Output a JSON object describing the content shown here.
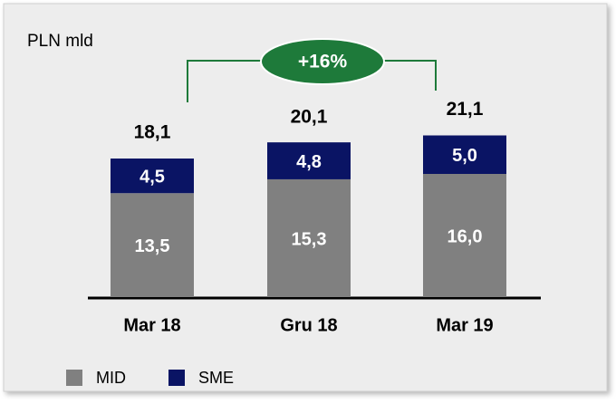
{
  "chart_data": {
    "type": "stacked_bar",
    "unit_label": "PLN mld",
    "annotation": "+16%",
    "categories": [
      "Mar 18",
      "Gru 18",
      "Mar 19"
    ],
    "series": [
      {
        "name": "MID",
        "color": "#808080",
        "values": [
          13.5,
          15.3,
          16.0
        ],
        "value_labels": [
          "13,5",
          "15,3",
          "16,0"
        ]
      },
      {
        "name": "SME",
        "color": "#0a1464",
        "values": [
          4.5,
          4.8,
          5.0
        ],
        "value_labels": [
          "4,5",
          "4,8",
          "5,0"
        ]
      }
    ],
    "totals": [
      18.1,
      20.1,
      21.1
    ],
    "total_labels": [
      "18,1",
      "20,1",
      "21,1"
    ],
    "ylim": [
      0,
      24
    ]
  }
}
